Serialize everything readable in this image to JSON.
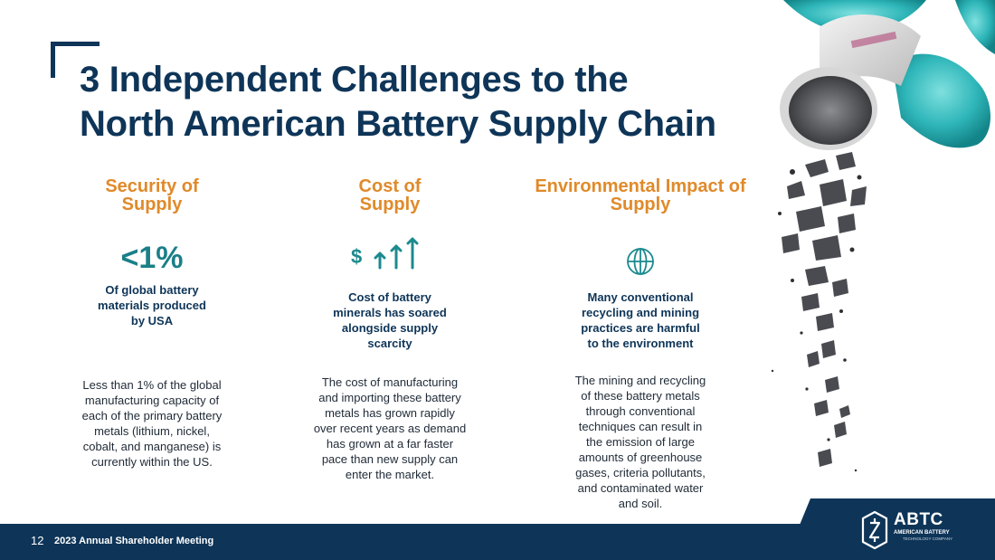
{
  "slide": {
    "title_line1": "3 Independent Challenges to the",
    "title_line2": "North American Battery Supply Chain"
  },
  "columns": [
    {
      "heading_line1": "Security of",
      "heading_line2": "Supply",
      "stat": "<1%",
      "subheading_lines": [
        "Of global battery",
        "materials produced",
        "by USA"
      ],
      "body_lines": [
        "Less than 1% of the global",
        "manufacturing capacity of",
        "each of the primary battery",
        "metals (lithium, nickel,",
        "cobalt, and manganese) is",
        "currently within the US."
      ]
    },
    {
      "heading_line1": "Cost of",
      "heading_line2": "Supply",
      "icon": "dollar-rising-arrows-icon",
      "icon_text": "$",
      "subheading_lines": [
        "Cost of battery",
        "minerals has soared",
        "alongside supply",
        "scarcity"
      ],
      "body_lines": [
        "The cost of manufacturing",
        "and importing these battery",
        "metals has grown rapidly",
        "over recent years as demand",
        "has grown at a far faster",
        "pace than new supply can",
        "enter the market."
      ]
    },
    {
      "heading_line1": "Environmental Impact of",
      "heading_line2": "Supply",
      "icon": "globe-icon",
      "subheading_lines": [
        "Many conventional",
        "recycling and mining",
        "practices are harmful",
        "to the environment"
      ],
      "body_lines": [
        "The mining and recycling",
        "of these battery metals",
        "through conventional",
        "techniques can result in",
        "the emission of large",
        "amounts of greenhouse",
        "gases, criteria pollutants,",
        "and contaminated water",
        "and soil."
      ]
    }
  ],
  "footer": {
    "page_number": "12",
    "event": "2023 Annual Shareholder Meeting"
  },
  "logo": {
    "short": "ABTC",
    "name": "AMERICAN BATTERY",
    "tagline": "TECHNOLOGY COMPANY"
  },
  "colors": {
    "navy": "#0e3558",
    "orange": "#e08a2a",
    "teal": "#1b8a8e"
  }
}
